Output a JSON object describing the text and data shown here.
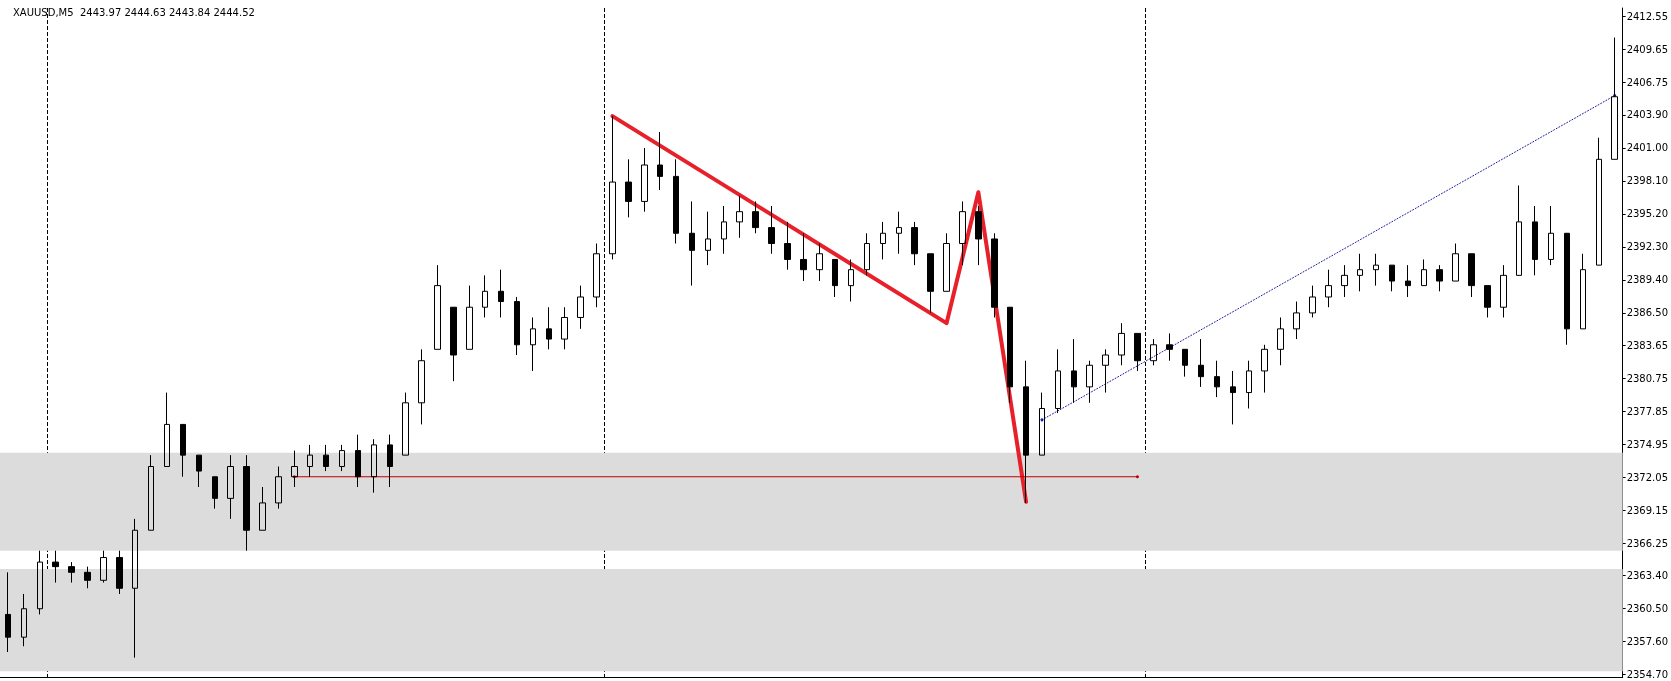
{
  "chart_data": {
    "type": "candlestick",
    "title": "XAUUSD,M5  2443.97 2444.63 2443.84 2444.52",
    "color": "#000000",
    "categories": [
      null,
      null,
      null,
      null,
      null,
      null,
      null,
      null,
      null,
      null,
      null,
      null,
      null,
      null,
      null,
      null,
      null,
      null,
      null,
      null,
      null,
      null,
      null,
      null,
      null,
      null,
      null,
      null,
      null,
      null,
      null,
      null,
      null,
      null,
      null,
      null,
      null,
      null,
      null,
      null,
      null,
      null,
      null,
      null,
      null,
      null,
      null,
      null,
      null,
      null,
      null,
      null,
      null,
      null,
      null,
      null,
      null,
      null,
      null,
      null,
      null,
      null,
      null,
      null,
      null,
      null,
      null,
      null,
      null,
      null,
      null,
      null,
      null,
      null,
      null,
      null,
      null,
      null,
      null,
      null,
      null,
      null,
      null,
      null,
      null,
      null,
      null,
      null,
      null,
      null,
      null,
      null,
      null,
      null,
      null,
      null,
      null,
      null,
      null,
      null,
      null,
      null
    ],
    "ohlc": [
      [
        2360.0,
        2363.7,
        2356.7,
        2358.0
      ],
      [
        2358.0,
        2361.8,
        2357.2,
        2360.5
      ],
      [
        2360.5,
        2365.6,
        2360.0,
        2364.6
      ],
      [
        2364.6,
        2365.6,
        2362.8,
        2364.2
      ],
      [
        2364.2,
        2364.6,
        2362.8,
        2363.7
      ],
      [
        2363.7,
        2364.2,
        2362.3,
        2363.0
      ],
      [
        2363.0,
        2365.6,
        2362.8,
        2365.0
      ],
      [
        2365.0,
        2365.6,
        2361.8,
        2362.3
      ],
      [
        2362.3,
        2368.4,
        2356.2,
        2367.4
      ],
      [
        2367.4,
        2374.0,
        2367.4,
        2373.0
      ],
      [
        2373.0,
        2379.5,
        2373.0,
        2376.7
      ],
      [
        2376.7,
        2376.7,
        2372.1,
        2374.0
      ],
      [
        2374.0,
        2374.0,
        2371.2,
        2372.6
      ],
      [
        2372.1,
        2372.1,
        2369.3,
        2370.2
      ],
      [
        2370.2,
        2374.0,
        2368.4,
        2373.0
      ],
      [
        2373.0,
        2374.0,
        2365.6,
        2367.4
      ],
      [
        2367.4,
        2371.2,
        2367.4,
        2369.8
      ],
      [
        2369.8,
        2373.0,
        2369.3,
        2372.1
      ],
      [
        2372.1,
        2374.4,
        2371.2,
        2373.0
      ],
      [
        2373.0,
        2374.9,
        2372.1,
        2374.0
      ],
      [
        2374.0,
        2374.9,
        2372.6,
        2373.0
      ],
      [
        2373.0,
        2374.9,
        2372.6,
        2374.4
      ],
      [
        2374.4,
        2375.8,
        2371.2,
        2372.1
      ],
      [
        2372.1,
        2375.4,
        2370.7,
        2374.9
      ],
      [
        2374.9,
        2375.8,
        2371.2,
        2373.0
      ],
      [
        2374.0,
        2379.5,
        2374.0,
        2378.6
      ],
      [
        2378.6,
        2383.3,
        2376.7,
        2382.3
      ],
      [
        2383.3,
        2390.7,
        2383.3,
        2388.9
      ],
      [
        2387.0,
        2387.0,
        2380.5,
        2382.8
      ],
      [
        2383.3,
        2388.9,
        2383.3,
        2387.0
      ],
      [
        2387.0,
        2389.8,
        2386.1,
        2388.4
      ],
      [
        2388.4,
        2390.3,
        2386.1,
        2387.5
      ],
      [
        2387.5,
        2387.9,
        2382.8,
        2383.7
      ],
      [
        2383.7,
        2386.1,
        2381.4,
        2385.1
      ],
      [
        2385.1,
        2387.0,
        2383.3,
        2384.2
      ],
      [
        2384.2,
        2387.0,
        2383.3,
        2386.1
      ],
      [
        2386.1,
        2388.9,
        2385.1,
        2387.9
      ],
      [
        2387.9,
        2392.6,
        2387.0,
        2391.7
      ],
      [
        2391.7,
        2403.8,
        2391.2,
        2398.0
      ],
      [
        2398.0,
        2400.0,
        2394.9,
        2396.3
      ],
      [
        2396.3,
        2401.0,
        2395.4,
        2399.5
      ],
      [
        2399.5,
        2402.4,
        2397.3,
        2398.5
      ],
      [
        2398.5,
        2400.0,
        2392.6,
        2393.5
      ],
      [
        2393.5,
        2396.3,
        2388.9,
        2392.0
      ],
      [
        2392.0,
        2395.4,
        2390.7,
        2393.0
      ],
      [
        2393.0,
        2395.9,
        2391.7,
        2394.5
      ],
      [
        2394.5,
        2396.8,
        2393.1,
        2395.4
      ],
      [
        2395.4,
        2396.3,
        2393.5,
        2394.0
      ],
      [
        2394.0,
        2395.9,
        2391.7,
        2392.6
      ],
      [
        2392.6,
        2394.5,
        2390.3,
        2391.2
      ],
      [
        2391.2,
        2393.5,
        2389.3,
        2390.3
      ],
      [
        2390.3,
        2392.6,
        2389.3,
        2391.7
      ],
      [
        2391.2,
        2391.2,
        2387.9,
        2388.9
      ],
      [
        2388.9,
        2391.2,
        2387.5,
        2390.3
      ],
      [
        2390.3,
        2393.5,
        2389.8,
        2392.6
      ],
      [
        2392.6,
        2394.5,
        2391.2,
        2393.5
      ],
      [
        2393.5,
        2395.4,
        2391.7,
        2394.0
      ],
      [
        2394.0,
        2394.5,
        2390.7,
        2391.7
      ],
      [
        2391.7,
        2391.7,
        2386.5,
        2388.4
      ],
      [
        2388.4,
        2393.5,
        2388.4,
        2392.6
      ],
      [
        2392.6,
        2396.3,
        2390.7,
        2395.4
      ],
      [
        2395.4,
        2395.9,
        2390.7,
        2393.0
      ],
      [
        2393.0,
        2393.5,
        2386.1,
        2387.0
      ],
      [
        2387.0,
        2387.0,
        2378.6,
        2380.0
      ],
      [
        2380.0,
        2382.3,
        2369.8,
        2374.0
      ],
      [
        2374.0,
        2379.5,
        2374.0,
        2378.1
      ],
      [
        2378.1,
        2383.3,
        2377.7,
        2381.4
      ],
      [
        2381.4,
        2384.2,
        2378.6,
        2380.0
      ],
      [
        2380.0,
        2382.3,
        2378.6,
        2381.9
      ],
      [
        2381.9,
        2383.3,
        2379.5,
        2382.8
      ],
      [
        2382.8,
        2385.6,
        2381.9,
        2384.7
      ],
      [
        2384.7,
        2384.7,
        2381.4,
        2382.3
      ],
      [
        2382.3,
        2384.2,
        2381.9,
        2383.7
      ],
      [
        2383.7,
        2384.7,
        2382.3,
        2383.3
      ],
      [
        2383.3,
        2383.3,
        2380.9,
        2381.9
      ],
      [
        2381.9,
        2384.2,
        2380.0,
        2380.9
      ],
      [
        2380.9,
        2382.3,
        2379.1,
        2380.0
      ],
      [
        2380.0,
        2381.4,
        2376.7,
        2379.5
      ],
      [
        2379.5,
        2382.3,
        2378.1,
        2381.4
      ],
      [
        2381.4,
        2383.7,
        2379.5,
        2383.3
      ],
      [
        2383.3,
        2386.1,
        2381.9,
        2385.1
      ],
      [
        2385.1,
        2387.5,
        2384.2,
        2386.5
      ],
      [
        2386.5,
        2388.9,
        2386.1,
        2387.9
      ],
      [
        2387.9,
        2390.3,
        2387.0,
        2388.9
      ],
      [
        2388.9,
        2390.7,
        2387.9,
        2389.8
      ],
      [
        2389.8,
        2391.7,
        2388.4,
        2390.3
      ],
      [
        2390.3,
        2391.7,
        2388.9,
        2390.7
      ],
      [
        2390.7,
        2390.7,
        2388.4,
        2389.3
      ],
      [
        2389.3,
        2390.7,
        2387.9,
        2388.9
      ],
      [
        2388.9,
        2391.2,
        2388.9,
        2390.3
      ],
      [
        2390.3,
        2390.7,
        2388.4,
        2389.3
      ],
      [
        2389.3,
        2392.6,
        2389.3,
        2391.7
      ],
      [
        2391.7,
        2391.7,
        2387.9,
        2388.9
      ],
      [
        2388.9,
        2388.9,
        2386.1,
        2387.0
      ],
      [
        2387.0,
        2390.7,
        2386.1,
        2389.8
      ],
      [
        2389.8,
        2397.7,
        2389.8,
        2394.5
      ],
      [
        2394.5,
        2395.9,
        2389.8,
        2391.2
      ],
      [
        2391.2,
        2395.9,
        2390.7,
        2393.5
      ],
      [
        2393.5,
        2393.5,
        2383.7,
        2385.1
      ],
      [
        2385.1,
        2391.7,
        2385.1,
        2390.3
      ],
      [
        2390.7,
        2401.9,
        2390.7,
        2400.0
      ],
      [
        2400.0,
        2410.7,
        2400.0,
        2405.5
      ]
    ],
    "series": [
      {
        "type": "line",
        "color": "#e8202a",
        "line_style": "solid",
        "values": [
          null,
          null,
          null,
          null,
          null,
          null,
          null,
          null,
          null,
          null,
          null,
          null,
          null,
          null,
          null,
          null,
          null,
          null,
          null,
          null,
          null,
          null,
          null,
          null,
          null,
          null,
          null,
          null,
          null,
          null,
          null,
          null,
          null,
          null,
          null,
          null,
          null,
          null,
          2403.8,
          null,
          null,
          null,
          null,
          null,
          null,
          null,
          null,
          null,
          null,
          null,
          null,
          null,
          null,
          null,
          null,
          null,
          null,
          null,
          null,
          2385.6,
          null,
          2397.1,
          null,
          null,
          2369.9,
          null,
          null,
          null,
          null,
          null,
          null,
          null,
          null,
          null,
          null,
          null,
          null,
          null,
          null,
          null,
          null,
          null,
          null,
          null,
          null,
          null,
          null,
          null,
          null,
          null,
          null,
          null,
          null,
          null,
          null,
          null,
          null,
          null,
          null,
          null,
          null,
          null
        ]
      },
      {
        "type": "line",
        "color": "#1a1aa0",
        "line_style": "dotted",
        "values": [
          null,
          null,
          null,
          null,
          null,
          null,
          null,
          null,
          null,
          null,
          null,
          null,
          null,
          null,
          null,
          null,
          null,
          null,
          null,
          null,
          null,
          null,
          null,
          null,
          null,
          null,
          null,
          null,
          null,
          null,
          null,
          null,
          null,
          null,
          null,
          null,
          null,
          null,
          null,
          null,
          null,
          null,
          null,
          null,
          null,
          null,
          null,
          null,
          null,
          null,
          null,
          null,
          null,
          null,
          null,
          null,
          null,
          null,
          null,
          null,
          null,
          null,
          null,
          null,
          null,
          2377.1,
          null,
          null,
          null,
          null,
          null,
          null,
          null,
          null,
          null,
          null,
          null,
          null,
          null,
          null,
          null,
          null,
          null,
          null,
          null,
          null,
          null,
          null,
          null,
          null,
          null,
          null,
          null,
          null,
          null,
          null,
          null,
          null,
          null,
          null,
          null,
          2405.6
        ]
      },
      {
        "type": "line",
        "color": "#c00000",
        "line_style": "solid",
        "values": [
          null,
          null,
          null,
          null,
          null,
          null,
          null,
          null,
          null,
          null,
          null,
          null,
          null,
          null,
          null,
          null,
          null,
          null,
          2372.1,
          null,
          null,
          null,
          null,
          null,
          null,
          null,
          null,
          null,
          null,
          null,
          null,
          null,
          null,
          null,
          null,
          null,
          null,
          null,
          null,
          null,
          null,
          null,
          null,
          null,
          null,
          null,
          null,
          null,
          null,
          null,
          null,
          null,
          null,
          null,
          null,
          null,
          null,
          null,
          null,
          null,
          null,
          null,
          null,
          null,
          null,
          null,
          null,
          null,
          null,
          null,
          null,
          2372.1,
          null,
          null,
          null,
          null,
          null,
          null,
          null,
          null,
          null,
          null,
          null,
          null,
          null,
          null,
          null,
          null,
          null,
          null,
          null,
          null,
          null,
          null,
          null,
          null,
          null,
          null,
          null,
          null,
          null,
          null
        ]
      }
    ],
    "bands": [
      {
        "axis": "y",
        "from": 2365.6,
        "to": 2374.2,
        "color": "#dcdcdc"
      },
      {
        "axis": "y",
        "from": 2355.0,
        "to": 2364.0,
        "color": "#dcdcdc"
      }
    ],
    "ylim": [
      2354.5,
      2413.3
    ],
    "yticks": [
      {
        "value": 2354.7,
        "label": "2354.70"
      },
      {
        "value": 2357.6,
        "label": "2357.60"
      },
      {
        "value": 2360.5,
        "label": "2360.50"
      },
      {
        "value": 2363.4,
        "label": "2363.40"
      },
      {
        "value": 2366.25,
        "label": "2366.25"
      },
      {
        "value": 2369.15,
        "label": "2369.15"
      },
      {
        "value": 2372.05,
        "label": "2372.05"
      },
      {
        "value": 2374.95,
        "label": "2374.95"
      },
      {
        "value": 2377.85,
        "label": "2377.85"
      },
      {
        "value": 2380.75,
        "label": "2380.75"
      },
      {
        "value": 2383.65,
        "label": "2383.65"
      },
      {
        "value": 2386.5,
        "label": "2386.50"
      },
      {
        "value": 2389.4,
        "label": "2389.40"
      },
      {
        "value": 2392.3,
        "label": "2392.30"
      },
      {
        "value": 2395.2,
        "label": "2395.20"
      },
      {
        "value": 2398.1,
        "label": "2398.10"
      },
      {
        "value": 2401.0,
        "label": "2401.00"
      },
      {
        "value": 2403.9,
        "label": "2403.90"
      },
      {
        "value": 2406.75,
        "label": "2406.75"
      },
      {
        "value": 2409.65,
        "label": "2409.65"
      },
      {
        "value": 2412.55,
        "label": "2412.55"
      }
    ],
    "tick_labels": "y",
    "grid": false
  }
}
